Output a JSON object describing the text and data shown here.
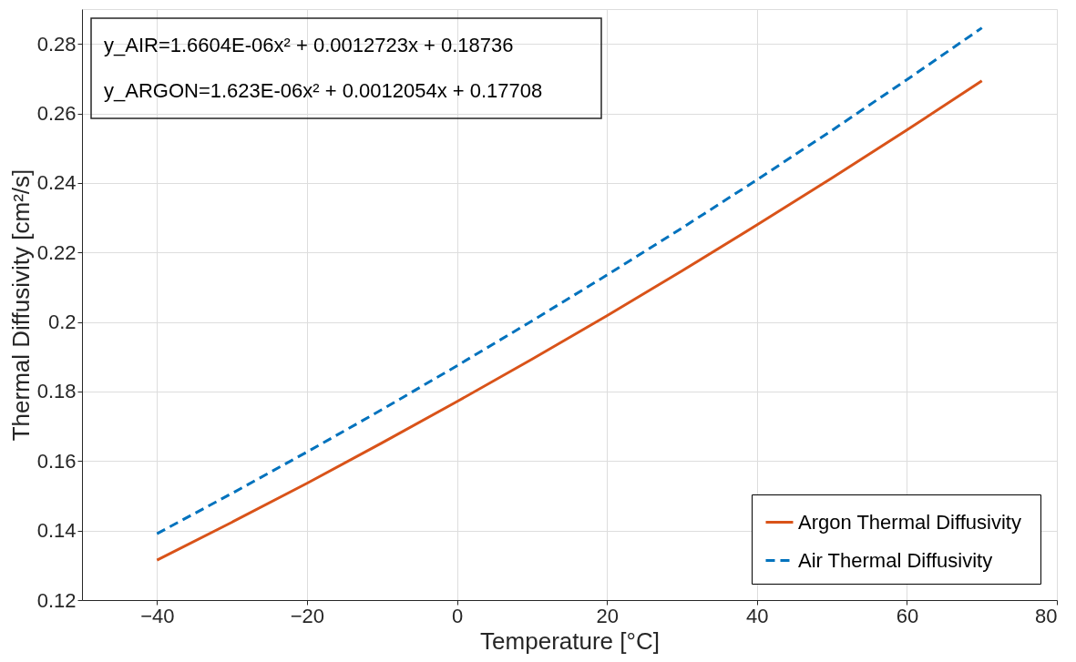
{
  "chart_data": {
    "type": "line",
    "xlabel": "Temperature [°C]",
    "ylabel": "Thermal Diffusivity [cm²/s]",
    "x": [
      -40,
      -30,
      -20,
      -10,
      0,
      10,
      20,
      30,
      40,
      50,
      60,
      70
    ],
    "series": [
      {
        "name": "Argon  Thermal Diffusivity",
        "color": "#d95319",
        "line_style": "solid",
        "values": [
          0.1315,
          0.1424,
          0.1536,
          0.1652,
          0.1771,
          0.1893,
          0.2018,
          0.2147,
          0.2279,
          0.2414,
          0.2552,
          0.2694
        ]
      },
      {
        "name": "Air Thermal Diffusivity",
        "color": "#0072bd",
        "line_style": "dashed",
        "values": [
          0.1391,
          0.1507,
          0.1626,
          0.1748,
          0.1874,
          0.2003,
          0.2135,
          0.227,
          0.2409,
          0.2551,
          0.2697,
          0.2846
        ]
      }
    ],
    "xlim": [
      -50,
      80
    ],
    "xticks": [
      -40,
      -20,
      0,
      20,
      40,
      60,
      80
    ],
    "ylim": [
      0.12,
      0.29
    ],
    "yticks": [
      0.12,
      0.14,
      0.16,
      0.18,
      0.2,
      0.22,
      0.24,
      0.26,
      0.28
    ],
    "annotations": [
      "y_AIR=1.6604E-06x² + 0.0012723x + 0.18736",
      "y_ARGON=1.623E-06x² + 0.0012054x + 0.17708"
    ],
    "grid": true,
    "legend": "bottom right"
  }
}
